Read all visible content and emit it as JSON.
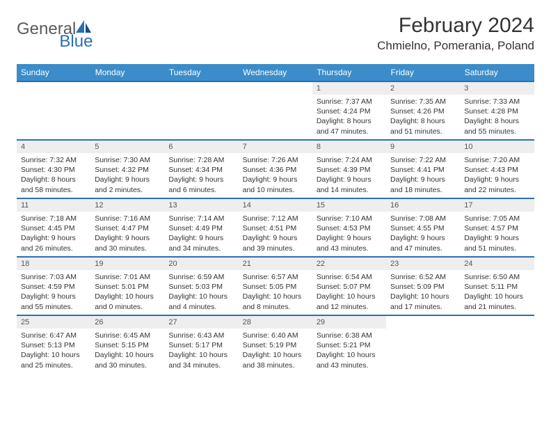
{
  "logo": {
    "general": "General",
    "blue": "Blue",
    "iconColor": "#2a6fb5"
  },
  "title": "February 2024",
  "location": "Chmielno, Pomerania, Poland",
  "dayHeaders": [
    "Sunday",
    "Monday",
    "Tuesday",
    "Wednesday",
    "Thursday",
    "Friday",
    "Saturday"
  ],
  "colors": {
    "headerBg": "#3b8cc9",
    "headerText": "#ffffff",
    "rowBorder": "#2a6fb5",
    "dayNumBg": "#eeeeee"
  },
  "weeks": [
    [
      null,
      null,
      null,
      null,
      {
        "num": "1",
        "sunrise": "Sunrise: 7:37 AM",
        "sunset": "Sunset: 4:24 PM",
        "daylight1": "Daylight: 8 hours",
        "daylight2": "and 47 minutes."
      },
      {
        "num": "2",
        "sunrise": "Sunrise: 7:35 AM",
        "sunset": "Sunset: 4:26 PM",
        "daylight1": "Daylight: 8 hours",
        "daylight2": "and 51 minutes."
      },
      {
        "num": "3",
        "sunrise": "Sunrise: 7:33 AM",
        "sunset": "Sunset: 4:28 PM",
        "daylight1": "Daylight: 8 hours",
        "daylight2": "and 55 minutes."
      }
    ],
    [
      {
        "num": "4",
        "sunrise": "Sunrise: 7:32 AM",
        "sunset": "Sunset: 4:30 PM",
        "daylight1": "Daylight: 8 hours",
        "daylight2": "and 58 minutes."
      },
      {
        "num": "5",
        "sunrise": "Sunrise: 7:30 AM",
        "sunset": "Sunset: 4:32 PM",
        "daylight1": "Daylight: 9 hours",
        "daylight2": "and 2 minutes."
      },
      {
        "num": "6",
        "sunrise": "Sunrise: 7:28 AM",
        "sunset": "Sunset: 4:34 PM",
        "daylight1": "Daylight: 9 hours",
        "daylight2": "and 6 minutes."
      },
      {
        "num": "7",
        "sunrise": "Sunrise: 7:26 AM",
        "sunset": "Sunset: 4:36 PM",
        "daylight1": "Daylight: 9 hours",
        "daylight2": "and 10 minutes."
      },
      {
        "num": "8",
        "sunrise": "Sunrise: 7:24 AM",
        "sunset": "Sunset: 4:39 PM",
        "daylight1": "Daylight: 9 hours",
        "daylight2": "and 14 minutes."
      },
      {
        "num": "9",
        "sunrise": "Sunrise: 7:22 AM",
        "sunset": "Sunset: 4:41 PM",
        "daylight1": "Daylight: 9 hours",
        "daylight2": "and 18 minutes."
      },
      {
        "num": "10",
        "sunrise": "Sunrise: 7:20 AM",
        "sunset": "Sunset: 4:43 PM",
        "daylight1": "Daylight: 9 hours",
        "daylight2": "and 22 minutes."
      }
    ],
    [
      {
        "num": "11",
        "sunrise": "Sunrise: 7:18 AM",
        "sunset": "Sunset: 4:45 PM",
        "daylight1": "Daylight: 9 hours",
        "daylight2": "and 26 minutes."
      },
      {
        "num": "12",
        "sunrise": "Sunrise: 7:16 AM",
        "sunset": "Sunset: 4:47 PM",
        "daylight1": "Daylight: 9 hours",
        "daylight2": "and 30 minutes."
      },
      {
        "num": "13",
        "sunrise": "Sunrise: 7:14 AM",
        "sunset": "Sunset: 4:49 PM",
        "daylight1": "Daylight: 9 hours",
        "daylight2": "and 34 minutes."
      },
      {
        "num": "14",
        "sunrise": "Sunrise: 7:12 AM",
        "sunset": "Sunset: 4:51 PM",
        "daylight1": "Daylight: 9 hours",
        "daylight2": "and 39 minutes."
      },
      {
        "num": "15",
        "sunrise": "Sunrise: 7:10 AM",
        "sunset": "Sunset: 4:53 PM",
        "daylight1": "Daylight: 9 hours",
        "daylight2": "and 43 minutes."
      },
      {
        "num": "16",
        "sunrise": "Sunrise: 7:08 AM",
        "sunset": "Sunset: 4:55 PM",
        "daylight1": "Daylight: 9 hours",
        "daylight2": "and 47 minutes."
      },
      {
        "num": "17",
        "sunrise": "Sunrise: 7:05 AM",
        "sunset": "Sunset: 4:57 PM",
        "daylight1": "Daylight: 9 hours",
        "daylight2": "and 51 minutes."
      }
    ],
    [
      {
        "num": "18",
        "sunrise": "Sunrise: 7:03 AM",
        "sunset": "Sunset: 4:59 PM",
        "daylight1": "Daylight: 9 hours",
        "daylight2": "and 55 minutes."
      },
      {
        "num": "19",
        "sunrise": "Sunrise: 7:01 AM",
        "sunset": "Sunset: 5:01 PM",
        "daylight1": "Daylight: 10 hours",
        "daylight2": "and 0 minutes."
      },
      {
        "num": "20",
        "sunrise": "Sunrise: 6:59 AM",
        "sunset": "Sunset: 5:03 PM",
        "daylight1": "Daylight: 10 hours",
        "daylight2": "and 4 minutes."
      },
      {
        "num": "21",
        "sunrise": "Sunrise: 6:57 AM",
        "sunset": "Sunset: 5:05 PM",
        "daylight1": "Daylight: 10 hours",
        "daylight2": "and 8 minutes."
      },
      {
        "num": "22",
        "sunrise": "Sunrise: 6:54 AM",
        "sunset": "Sunset: 5:07 PM",
        "daylight1": "Daylight: 10 hours",
        "daylight2": "and 12 minutes."
      },
      {
        "num": "23",
        "sunrise": "Sunrise: 6:52 AM",
        "sunset": "Sunset: 5:09 PM",
        "daylight1": "Daylight: 10 hours",
        "daylight2": "and 17 minutes."
      },
      {
        "num": "24",
        "sunrise": "Sunrise: 6:50 AM",
        "sunset": "Sunset: 5:11 PM",
        "daylight1": "Daylight: 10 hours",
        "daylight2": "and 21 minutes."
      }
    ],
    [
      {
        "num": "25",
        "sunrise": "Sunrise: 6:47 AM",
        "sunset": "Sunset: 5:13 PM",
        "daylight1": "Daylight: 10 hours",
        "daylight2": "and 25 minutes."
      },
      {
        "num": "26",
        "sunrise": "Sunrise: 6:45 AM",
        "sunset": "Sunset: 5:15 PM",
        "daylight1": "Daylight: 10 hours",
        "daylight2": "and 30 minutes."
      },
      {
        "num": "27",
        "sunrise": "Sunrise: 6:43 AM",
        "sunset": "Sunset: 5:17 PM",
        "daylight1": "Daylight: 10 hours",
        "daylight2": "and 34 minutes."
      },
      {
        "num": "28",
        "sunrise": "Sunrise: 6:40 AM",
        "sunset": "Sunset: 5:19 PM",
        "daylight1": "Daylight: 10 hours",
        "daylight2": "and 38 minutes."
      },
      {
        "num": "29",
        "sunrise": "Sunrise: 6:38 AM",
        "sunset": "Sunset: 5:21 PM",
        "daylight1": "Daylight: 10 hours",
        "daylight2": "and 43 minutes."
      },
      null,
      null
    ]
  ]
}
